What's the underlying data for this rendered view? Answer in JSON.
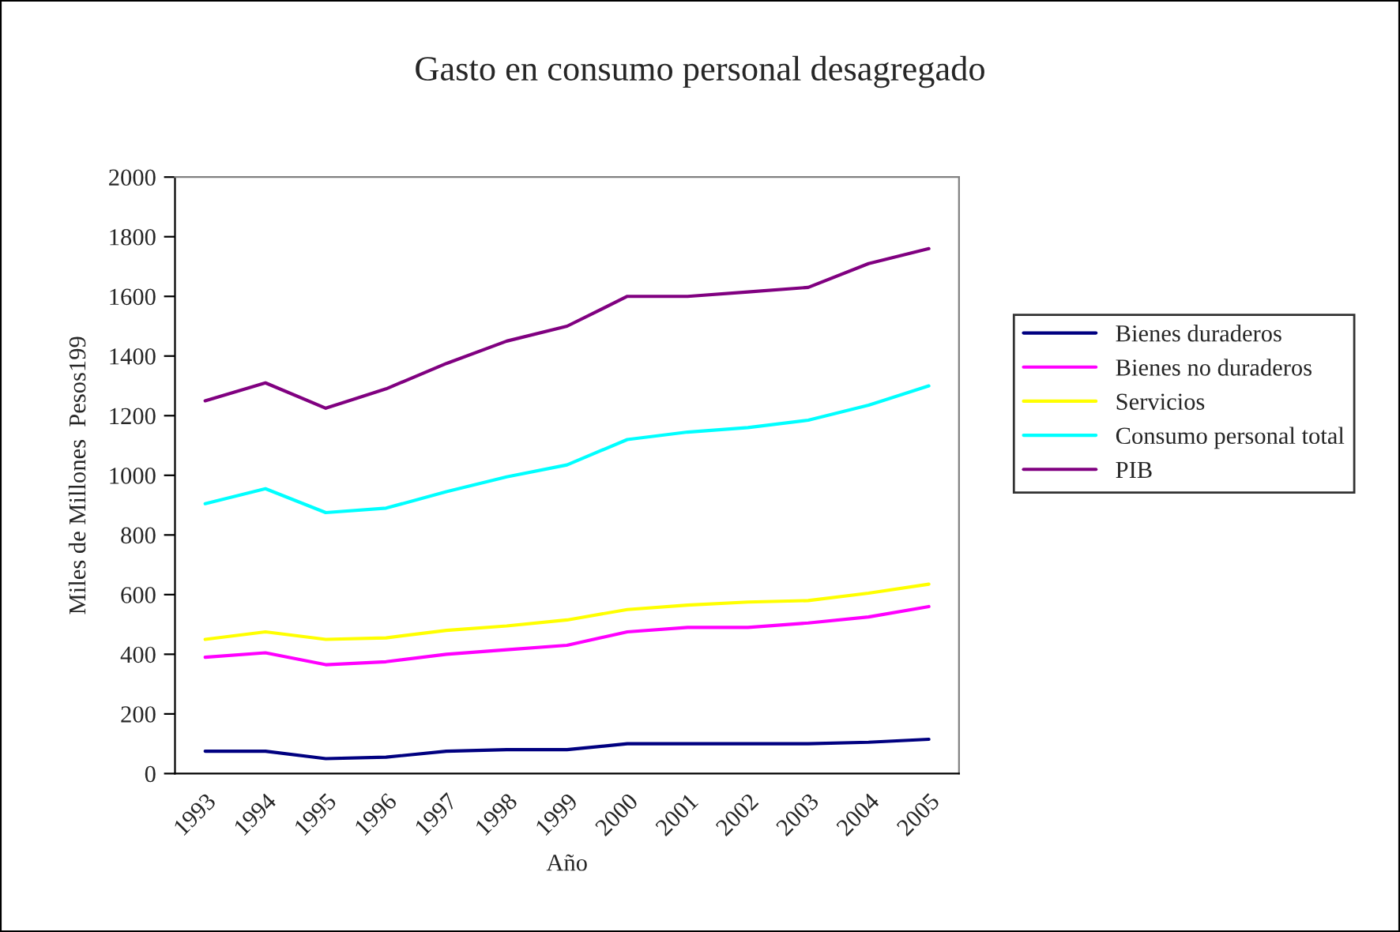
{
  "chart_data": {
    "type": "line",
    "title": "Gasto en consumo personal desagregado",
    "xlabel": "Año",
    "ylabel": "Miles de Millones  Pesos199",
    "categories": [
      "1993",
      "1994",
      "1995",
      "1996",
      "1997",
      "1998",
      "1999",
      "2000",
      "2001",
      "2002",
      "2003",
      "2004",
      "2005"
    ],
    "ylim": [
      0,
      2000
    ],
    "yticks": [
      0,
      200,
      400,
      600,
      800,
      1000,
      1200,
      1400,
      1600,
      1800,
      2000
    ],
    "grid": false,
    "legend": "right",
    "marker": "none",
    "line_style": "solid",
    "series": [
      {
        "name": "Bienes duraderos",
        "color": "#000080",
        "values": [
          75,
          75,
          50,
          55,
          75,
          80,
          80,
          100,
          100,
          100,
          100,
          105,
          115
        ]
      },
      {
        "name": "Bienes no duraderos",
        "color": "#ff00ff",
        "values": [
          390,
          405,
          365,
          375,
          400,
          415,
          430,
          475,
          490,
          490,
          505,
          525,
          560
        ]
      },
      {
        "name": "Servicios",
        "color": "#ffff00",
        "values": [
          450,
          475,
          450,
          455,
          480,
          495,
          515,
          550,
          565,
          575,
          580,
          605,
          635
        ]
      },
      {
        "name": "Consumo personal total",
        "color": "#00ffff",
        "values": [
          905,
          955,
          875,
          890,
          945,
          995,
          1035,
          1120,
          1145,
          1160,
          1185,
          1235,
          1300
        ]
      },
      {
        "name": "PIB",
        "color": "#800080",
        "values": [
          1250,
          1310,
          1225,
          1290,
          1375,
          1450,
          1500,
          1600,
          1600,
          1615,
          1630,
          1710,
          1760
        ]
      }
    ]
  }
}
